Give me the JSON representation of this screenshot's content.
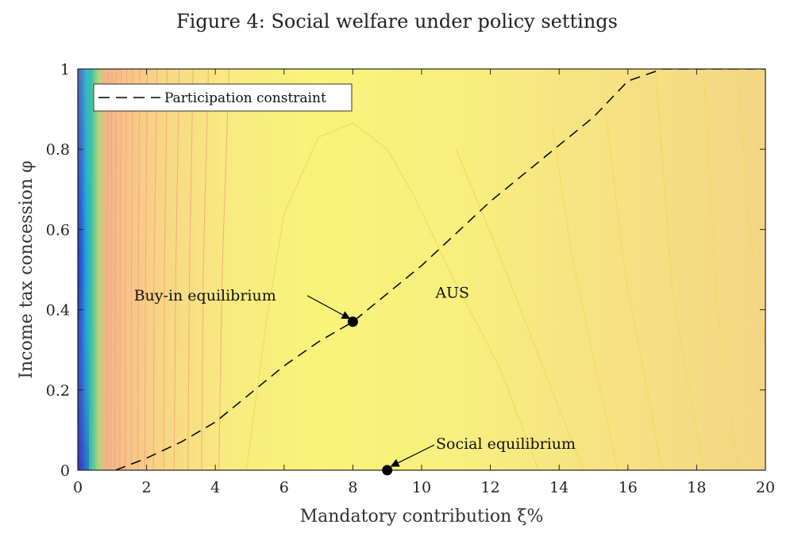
{
  "chart_data": {
    "type": "contour",
    "title": "Figure 4: Social welfare under policy settings",
    "xlabel": "Mandatory contribution ξ%",
    "ylabel": "Income tax concession φ",
    "xlim": [
      0,
      20
    ],
    "ylim": [
      0,
      1
    ],
    "xticks": [
      0,
      2,
      4,
      6,
      8,
      10,
      12,
      14,
      16,
      18,
      20
    ],
    "yticks": [
      0,
      0.2,
      0.4,
      0.6,
      0.8,
      1
    ],
    "ytick_labels": [
      "0",
      "0.2",
      "0.4",
      "0.6",
      "0.8",
      "1"
    ],
    "grid": false,
    "legend": {
      "position": "top-left",
      "entries": [
        "Participation constraint"
      ]
    },
    "series": [
      {
        "name": "Participation constraint",
        "style": "dashed",
        "color": "#000000",
        "x": [
          1.1,
          2,
          3,
          4,
          5,
          6,
          7,
          8,
          9,
          10,
          11,
          12,
          13,
          14,
          15,
          16,
          17,
          18,
          20
        ],
        "y": [
          0.0,
          0.03,
          0.07,
          0.12,
          0.19,
          0.26,
          0.32,
          0.37,
          0.44,
          0.51,
          0.59,
          0.67,
          0.74,
          0.81,
          0.88,
          0.97,
          1.0,
          1.0,
          1.0
        ]
      }
    ],
    "points": [
      {
        "label": "Buy-in equilibrium",
        "x": 8.0,
        "y": 0.37,
        "label_x": 2.0,
        "label_y": 0.435
      },
      {
        "label": "Social equilibrium",
        "x": 9.0,
        "y": 0.0,
        "label_x": 10.3,
        "label_y": 0.065
      }
    ],
    "annotations": [
      {
        "text": "AUS",
        "x": 10.4,
        "y": 0.43
      }
    ],
    "contour_lines": [
      {
        "x": [
          4.9,
          5.5,
          6.0,
          7.0,
          8.0,
          9.0,
          9.8,
          10.8,
          12.3,
          13.4
        ],
        "y": [
          0.0,
          0.38,
          0.64,
          0.83,
          0.865,
          0.8,
          0.68,
          0.5,
          0.25,
          0.0
        ]
      },
      {
        "x": [
          14.7,
          12.2,
          11.0
        ],
        "y": [
          0.0,
          0.55,
          0.8
        ]
      },
      {
        "x": [
          15.7,
          14.4,
          13.8
        ],
        "y": [
          0.0,
          0.52,
          0.86
        ]
      },
      {
        "x": [
          17.0,
          15.9,
          15.3
        ],
        "y": [
          0.0,
          0.5,
          0.93
        ]
      },
      {
        "x": [
          18.2,
          17.3,
          16.8
        ],
        "y": [
          0.0,
          0.44,
          1.0
        ]
      },
      {
        "x": [
          19.2,
          18.6,
          18.2
        ],
        "y": [
          0.0,
          0.4,
          1.0
        ]
      },
      {
        "x": [
          20.0,
          19.5,
          19.2
        ],
        "y": [
          0.3,
          0.62,
          1.0
        ]
      },
      {
        "x": [
          4.1,
          4.2,
          4.4
        ],
        "y": [
          0.0,
          0.5,
          1.0
        ]
      },
      {
        "x": [
          3.6,
          3.65,
          3.8
        ],
        "y": [
          0.0,
          0.5,
          1.0
        ]
      },
      {
        "x": [
          3.2,
          3.25,
          3.35
        ],
        "y": [
          0.0,
          0.5,
          1.0
        ]
      },
      {
        "x": [
          2.8,
          2.85,
          2.95
        ],
        "y": [
          0.0,
          0.5,
          1.0
        ]
      },
      {
        "x": [
          2.5,
          2.52,
          2.6
        ],
        "y": [
          0.0,
          0.5,
          1.0
        ]
      },
      {
        "x": [
          2.2,
          2.22,
          2.3
        ],
        "y": [
          0.0,
          0.5,
          1.0
        ]
      },
      {
        "x": [
          1.95,
          1.97,
          2.02
        ],
        "y": [
          0.0,
          0.5,
          1.0
        ]
      },
      {
        "x": [
          1.75,
          1.76,
          1.8
        ],
        "y": [
          0.0,
          0.5,
          1.0
        ]
      },
      {
        "x": [
          1.55,
          1.56,
          1.6
        ],
        "y": [
          0.0,
          0.5,
          1.0
        ]
      },
      {
        "x": [
          1.38,
          1.39,
          1.42
        ],
        "y": [
          0.0,
          0.5,
          1.0
        ]
      },
      {
        "x": [
          1.22,
          1.23,
          1.26
        ],
        "y": [
          0.0,
          0.5,
          1.0
        ]
      },
      {
        "x": [
          1.08,
          1.09,
          1.12
        ],
        "y": [
          0.0,
          0.5,
          1.0
        ]
      },
      {
        "x": [
          0.95,
          0.96,
          0.99
        ],
        "y": [
          0.0,
          0.5,
          1.0
        ]
      },
      {
        "x": [
          0.85,
          0.86,
          0.89
        ],
        "y": [
          0.0,
          0.5,
          1.0
        ]
      }
    ],
    "colormap": [
      "#3b2fb5",
      "#1e7ee8",
      "#18b3c9",
      "#6bcc7a",
      "#e8c87a",
      "#f7b786",
      "#f8e07a",
      "#f9f27a",
      "#f3d97f"
    ]
  }
}
